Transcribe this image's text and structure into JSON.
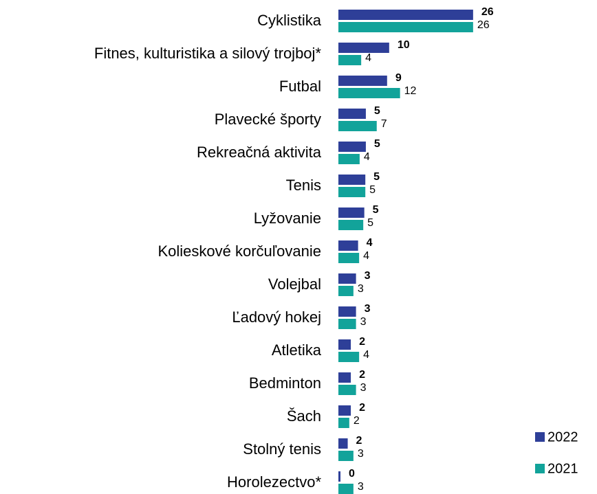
{
  "chart_data": {
    "type": "barh",
    "categories": [
      "Cyklistika",
      "Fitnes, kulturistika a silový trojboj*",
      "Futbal",
      "Plavecké športy",
      "Rekreačná aktivita",
      "Tenis",
      "Lyžovanie",
      "Kolieskové korčuľovanie",
      "Volejbal",
      "Ľadový hokej",
      "Atletika",
      "Bedminton",
      "Šach",
      "Stolný tenis",
      "Horolezectvo*"
    ],
    "series": [
      {
        "name": "2022",
        "color": "#2e3f98",
        "values": [
          26,
          9.8,
          9.4,
          5.3,
          5.3,
          5.2,
          5.0,
          3.8,
          3.4,
          3.4,
          2.4,
          2.4,
          2.4,
          1.8,
          0.4
        ],
        "value_labels": [
          "26",
          "10",
          "9",
          "5",
          "5",
          "5",
          "5",
          "4",
          "3",
          "3",
          "2",
          "2",
          "2",
          "2",
          "0"
        ]
      },
      {
        "name": "2021",
        "color": "#12a39a",
        "values": [
          26,
          4.4,
          11.9,
          7.4,
          4.1,
          5.2,
          4.8,
          4.0,
          2.9,
          3.4,
          4.0,
          3.4,
          2.1,
          2.9,
          2.9
        ],
        "value_labels": [
          "26",
          "4",
          "12",
          "7",
          "4",
          "5",
          "5",
          "4",
          "3",
          "3",
          "4",
          "3",
          "2",
          "3",
          "3"
        ]
      }
    ],
    "xlim": [
      0,
      30
    ],
    "legend": "bottom-right"
  }
}
